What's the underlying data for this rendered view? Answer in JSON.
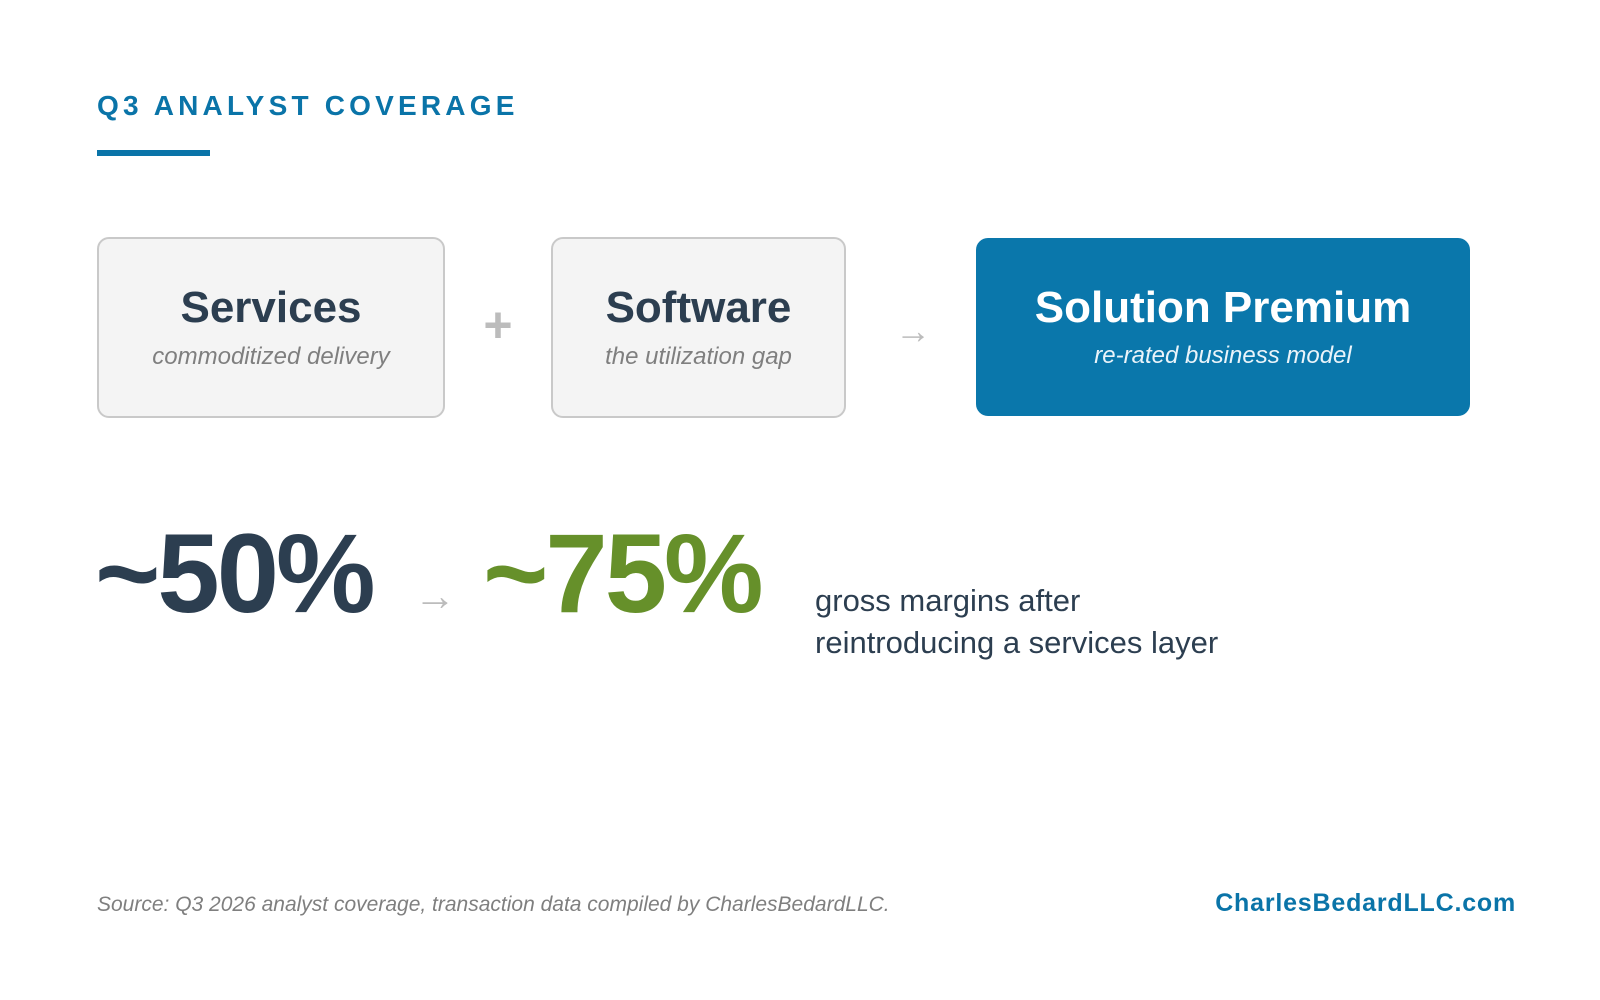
{
  "header": {
    "eyebrow": "Q3 ANALYST COVERAGE"
  },
  "equation": {
    "blocks": [
      {
        "title": "Services",
        "subtitle": "commoditized delivery"
      },
      {
        "title": "Software",
        "subtitle": "the utilization gap"
      },
      {
        "title": "Solution Premium",
        "subtitle": "re-rated business model"
      }
    ],
    "plus_symbol": "+",
    "arrow_symbol": "→"
  },
  "metric": {
    "from": "~50%",
    "arrow_symbol": "→",
    "to": "~75%",
    "caption_line1": "gross margins after",
    "caption_line2": "reintroducing a services layer"
  },
  "footer": {
    "source": "Source: Q3 2026 analyst coverage, transaction data compiled by CharlesBedardLLC.",
    "brand": "CharlesBedardLLC.com"
  },
  "colors": {
    "accent": "#0a74a8",
    "dark_text": "#2c3e50",
    "positive": "#66902a",
    "muted": "#7f7f7f",
    "box_fill": "#f4f4f4",
    "box_border": "#c9c9c9"
  }
}
